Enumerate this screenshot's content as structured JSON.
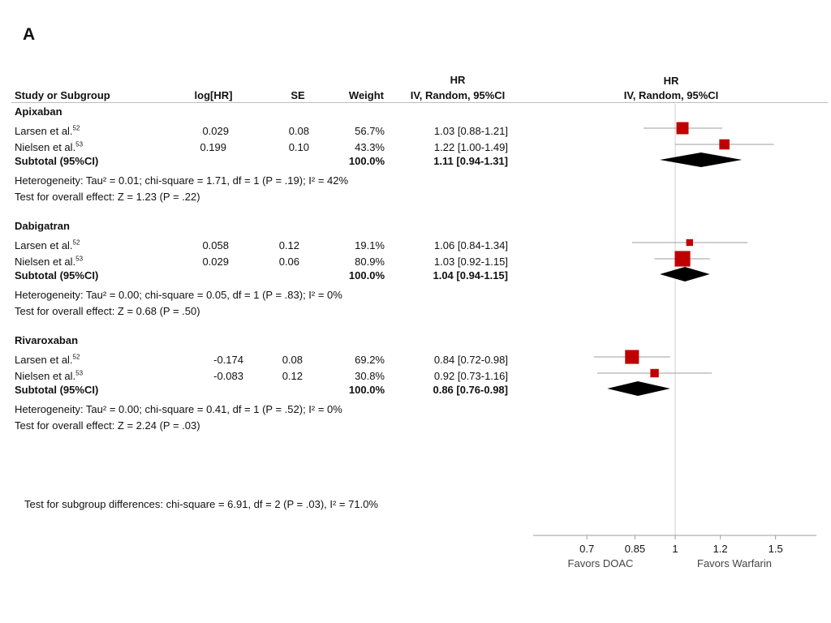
{
  "panel_label": "A",
  "headers": {
    "study": "Study or Subgroup",
    "loghr": "log[HR]",
    "se": "SE",
    "weight": "Weight",
    "hr_top": "HR",
    "hr_bottom": "IV, Random, 95%CI",
    "plot_top": "HR",
    "plot_bottom": "IV, Random, 95%CI"
  },
  "groups": [
    {
      "name": "Apixaban",
      "rows": [
        {
          "study": "Larsen et al.",
          "ref": "52",
          "loghr": "0.029",
          "se": "0.08",
          "weight": "56.7%",
          "ci": "1.03 [0.88-1.21]"
        },
        {
          "study": "Nielsen et al.",
          "ref": "53",
          "loghr": "0.199",
          "se": "0.10",
          "weight": "43.3%",
          "ci": "1.22 [1.00-1.49]"
        }
      ],
      "subtotal": {
        "label": "Subtotal (95%CI)",
        "weight": "100.0%",
        "ci": "1.11 [0.94-1.31]"
      },
      "heterogeneity": "Heterogeneity: Tau² = 0.01; chi-square = 1.71, df = 1 (P = .19); I² = 42%",
      "overall": "Test for overall effect: Z = 1.23 (P = .22)"
    },
    {
      "name": "Dabigatran",
      "rows": [
        {
          "study": "Larsen et al.",
          "ref": "52",
          "loghr": "0.058",
          "se": "0.12",
          "weight": "19.1%",
          "ci": "1.06 [0.84-1.34]"
        },
        {
          "study": "Nielsen et al.",
          "ref": "53",
          "loghr": "0.029",
          "se": "0.06",
          "weight": "80.9%",
          "ci": "1.03 [0.92-1.15]"
        }
      ],
      "subtotal": {
        "label": "Subtotal (95%CI)",
        "weight": "100.0%",
        "ci": "1.04 [0.94-1.15]"
      },
      "heterogeneity": "Heterogeneity: Tau² = 0.00; chi-square = 0.05, df = 1 (P = .83); I² = 0%",
      "overall": "Test for overall effect: Z = 0.68 (P = .50)"
    },
    {
      "name": "Rivaroxaban",
      "rows": [
        {
          "study": "Larsen et al.",
          "ref": "52",
          "loghr": "-0.174",
          "se": "0.08",
          "weight": "69.2%",
          "ci": "0.84 [0.72-0.98]"
        },
        {
          "study": "Nielsen et al.",
          "ref": "53",
          "loghr": "-0.083",
          "se": "0.12",
          "weight": "30.8%",
          "ci": "0.92 [0.73-1.16]"
        }
      ],
      "subtotal": {
        "label": "Subtotal (95%CI)",
        "weight": "100.0%",
        "ci": "0.86 [0.76-0.98]"
      },
      "heterogeneity": "Heterogeneity: Tau² = 0.00; chi-square = 0.41, df = 1 (P = .52); I² = 0%",
      "overall": "Test for overall effect: Z = 2.24 (P = .03)"
    }
  ],
  "subgroup_test": "Test for subgroup differences: chi-square = 6.91, df = 2 (P = .03), I² = 71.0%",
  "favors_left": "Favors DOAC",
  "favors_right": "Favors Warfarin",
  "colors": {
    "square": "#c00000",
    "diamond": "#000000",
    "ci_line": "#9e9e9e",
    "ref_line": "#cfcfcf"
  },
  "chart_data": {
    "type": "forest",
    "xlabel": "",
    "ylabel": "",
    "xlim": [
      0.55,
      1.7
    ],
    "xticks": [
      "0.7",
      "0.85",
      "1",
      "1.2",
      "1.5"
    ],
    "tick_values": [
      0.7,
      0.85,
      1.0,
      1.2,
      1.5
    ],
    "reference": 1.0,
    "series": [
      {
        "group": "Apixaban",
        "studies": [
          {
            "hr": 1.03,
            "lo": 0.88,
            "hi": 1.21,
            "weight": 56.7
          },
          {
            "hr": 1.22,
            "lo": 1.0,
            "hi": 1.49,
            "weight": 43.3
          }
        ],
        "pooled": {
          "hr": 1.11,
          "lo": 0.94,
          "hi": 1.31
        }
      },
      {
        "group": "Dabigatran",
        "studies": [
          {
            "hr": 1.06,
            "lo": 0.84,
            "hi": 1.34,
            "weight": 19.1
          },
          {
            "hr": 1.03,
            "lo": 0.92,
            "hi": 1.15,
            "weight": 80.9
          }
        ],
        "pooled": {
          "hr": 1.04,
          "lo": 0.94,
          "hi": 1.15
        }
      },
      {
        "group": "Rivaroxaban",
        "studies": [
          {
            "hr": 0.84,
            "lo": 0.72,
            "hi": 0.98,
            "weight": 69.2
          },
          {
            "hr": 0.92,
            "lo": 0.73,
            "hi": 1.16,
            "weight": 30.8
          }
        ],
        "pooled": {
          "hr": 0.86,
          "lo": 0.76,
          "hi": 0.98
        }
      }
    ]
  }
}
